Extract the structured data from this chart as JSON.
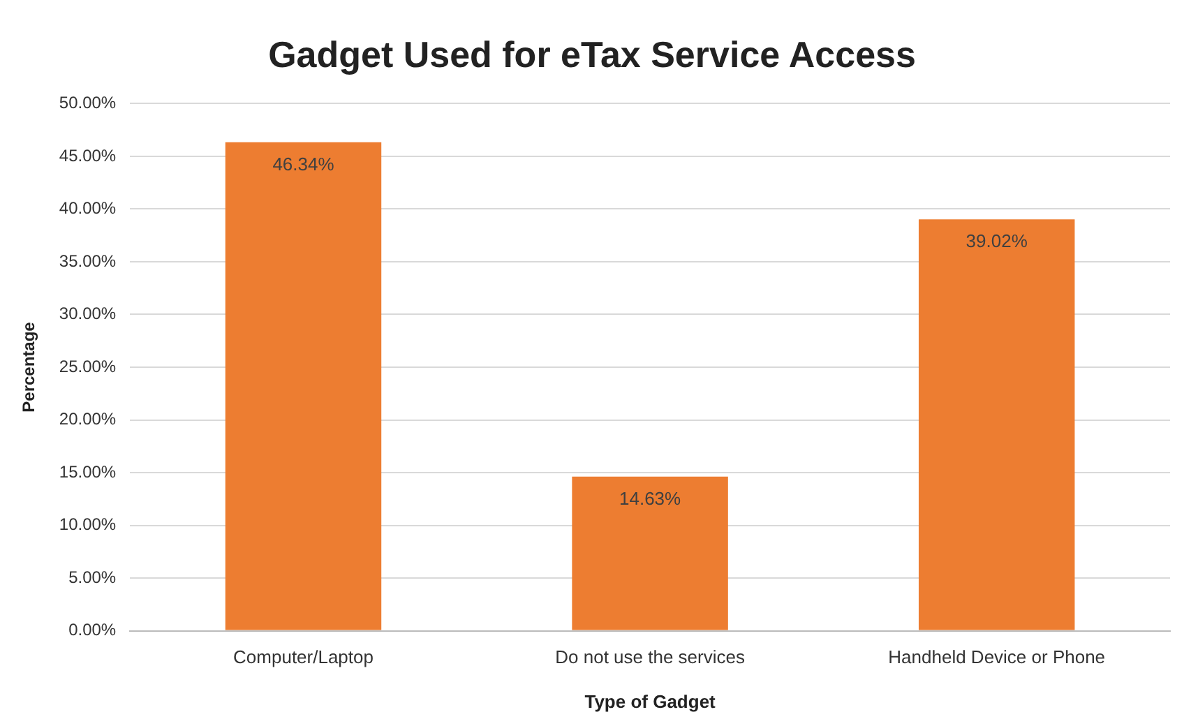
{
  "chart_data": {
    "type": "bar",
    "title": "Gadget Used for eTax Service Access",
    "xlabel": "Type of Gadget",
    "ylabel": "Percentage",
    "categories": [
      "Computer/Laptop",
      "Do not use the services",
      "Handheld Device or Phone"
    ],
    "values": [
      46.34,
      14.63,
      39.02
    ],
    "value_labels": [
      "46.34%",
      "14.63%",
      "39.02%"
    ],
    "color": "#ed7d31",
    "ylim": [
      0,
      50
    ],
    "yticks": [
      {
        "value": 0,
        "label": "0.00%"
      },
      {
        "value": 5,
        "label": "5.00%"
      },
      {
        "value": 10,
        "label": "10.00%"
      },
      {
        "value": 15,
        "label": "15.00%"
      },
      {
        "value": 20,
        "label": "20.00%"
      },
      {
        "value": 25,
        "label": "25.00%"
      },
      {
        "value": 30,
        "label": "30.00%"
      },
      {
        "value": 35,
        "label": "35.00%"
      },
      {
        "value": 40,
        "label": "40.00%"
      },
      {
        "value": 45,
        "label": "45.00%"
      },
      {
        "value": 50,
        "label": "50.00%"
      }
    ],
    "grid": "y",
    "legend": false
  }
}
